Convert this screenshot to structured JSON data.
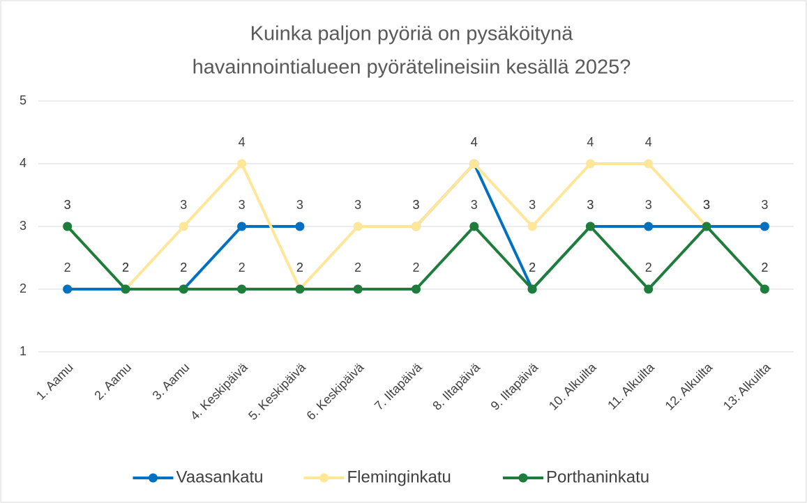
{
  "chart_data": {
    "type": "line",
    "title": [
      "Kuinka paljon pyöriä on pysäköitynä",
      "havainnointialueen pyörätelineisiin kesällä 2025?"
    ],
    "categories": [
      "1. Aamu",
      "2. Aamu",
      "3. Aamu",
      "4. Keskipäivä",
      "5. Keskipäivä",
      "6. Keskipäivä",
      "7. Iltapäivä",
      "8. Iltapäivä",
      "9.  Iltapäivä",
      "10. Alkuilta",
      "11. Alkuilta",
      "12. Alkuilta",
      "13: Alkuilta"
    ],
    "series": [
      {
        "name": "Vaasankatu",
        "color": "#0070c0",
        "values": [
          2,
          2,
          2,
          3,
          3,
          null,
          3,
          4,
          2,
          3,
          3,
          3,
          3
        ]
      },
      {
        "name": "Fleminginkatu",
        "color": "#ffe699",
        "values": [
          3,
          2,
          3,
          4,
          2,
          3,
          3,
          4,
          3,
          4,
          4,
          3,
          2
        ]
      },
      {
        "name": "Porthaninkatu",
        "color": "#1e7d3c",
        "values": [
          3,
          2,
          2,
          2,
          2,
          2,
          2,
          3,
          2,
          3,
          2,
          3,
          2
        ]
      }
    ],
    "ylim": [
      1,
      5
    ],
    "yticks": [
      1,
      2,
      3,
      4,
      5
    ],
    "grid": true,
    "legend": "bottom"
  }
}
